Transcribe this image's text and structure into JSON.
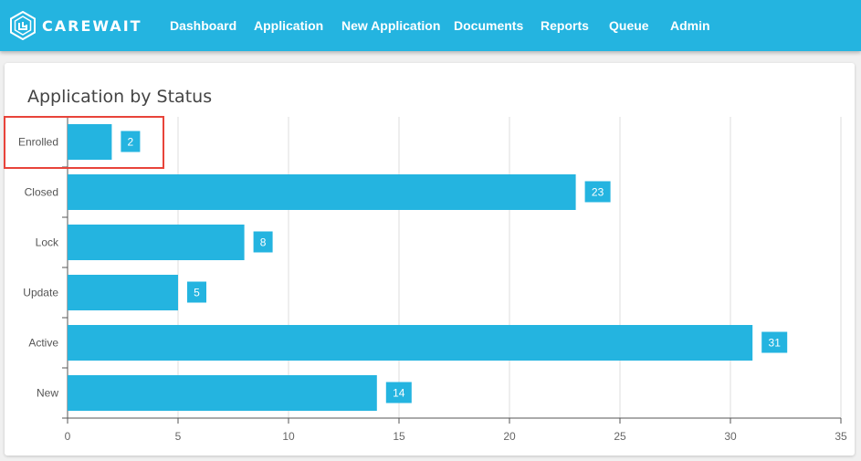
{
  "nav": {
    "brand": "CAREWAIT",
    "items": [
      {
        "id": "dashboard",
        "label": "Dashboard"
      },
      {
        "id": "application",
        "label": "Application"
      },
      {
        "id": "new-application",
        "label": "New Application"
      },
      {
        "id": "documents",
        "label": "Documents"
      },
      {
        "id": "reports",
        "label": "Reports"
      },
      {
        "id": "queue",
        "label": "Queue"
      },
      {
        "id": "admin",
        "label": "Admin"
      }
    ]
  },
  "panel": {
    "title": "Application by Status"
  },
  "colors": {
    "navbar": "#24b4e0",
    "bar": "#24b4e0",
    "highlight": "#e8443a"
  },
  "chart_data": {
    "type": "bar",
    "orientation": "horizontal",
    "categories": [
      "Enrolled",
      "Closed",
      "Lock",
      "Update",
      "Active",
      "New"
    ],
    "values": [
      2,
      23,
      8,
      5,
      31,
      14
    ],
    "xlim": [
      0,
      35
    ],
    "xticks": [
      0,
      5,
      10,
      15,
      20,
      25,
      30,
      35
    ],
    "grid": true,
    "data_labels": true
  }
}
